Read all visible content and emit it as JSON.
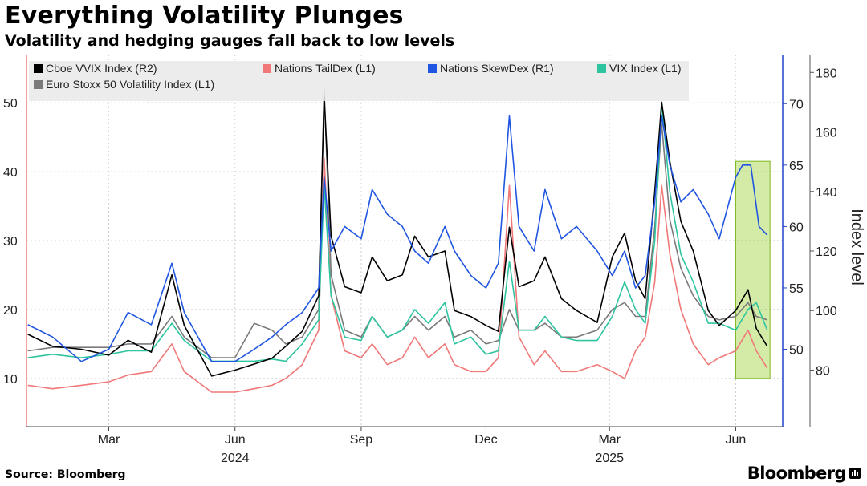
{
  "title": "Everything Volatility Plunges",
  "subtitle": "Volatility and hedging gauges fall back to low levels",
  "source": "Source: Bloomberg",
  "brand": "Bloomberg",
  "chart_data": {
    "type": "line",
    "ylabel": "Index level",
    "legend_placement": "top-left",
    "grid": true,
    "x_range": [
      "2024-01-01",
      "2025-06-30"
    ],
    "x_ticks": [
      {
        "date": "2024-03-01",
        "label": "Mar"
      },
      {
        "date": "2024-06-01",
        "label": "Jun"
      },
      {
        "date": "2024-09-01",
        "label": "Sep"
      },
      {
        "date": "2024-12-01",
        "label": "Dec"
      },
      {
        "date": "2025-03-01",
        "label": "Mar"
      },
      {
        "date": "2025-06-01",
        "label": "Jun"
      }
    ],
    "year_labels": [
      {
        "date": "2024-06-01",
        "label": "2024"
      },
      {
        "date": "2025-03-01",
        "label": "2025"
      }
    ],
    "axes": {
      "L1": {
        "range": [
          3,
          57
        ],
        "ticks": [
          10,
          20,
          30,
          40,
          50
        ],
        "color": "#e04040"
      },
      "R1": {
        "range": [
          43.7,
          74
        ],
        "ticks": [
          50,
          55,
          60,
          65,
          70
        ],
        "color": "#2244cc"
      },
      "R2": {
        "range": [
          61,
          186
        ],
        "ticks": [
          80,
          100,
          120,
          140,
          160,
          180
        ],
        "color": "#000000"
      }
    },
    "highlight": {
      "x": [
        "2025-06-01",
        "2025-06-26"
      ],
      "y_L1": [
        10,
        41.5
      ],
      "color": "#9ed23c"
    },
    "series": [
      {
        "name": "Cboe VVIX Index  (R2)",
        "axis": "R2",
        "color": "#000000",
        "points": [
          [
            "2024-01-02",
            92
          ],
          [
            "2024-01-20",
            88
          ],
          [
            "2024-02-10",
            87
          ],
          [
            "2024-03-01",
            85
          ],
          [
            "2024-03-15",
            90
          ],
          [
            "2024-04-01",
            86
          ],
          [
            "2024-04-16",
            112
          ],
          [
            "2024-04-25",
            95
          ],
          [
            "2024-05-15",
            78
          ],
          [
            "2024-06-01",
            80
          ],
          [
            "2024-06-15",
            82
          ],
          [
            "2024-06-28",
            84
          ],
          [
            "2024-07-08",
            88
          ],
          [
            "2024-07-20",
            93
          ],
          [
            "2024-08-01",
            105
          ],
          [
            "2024-08-05",
            172
          ],
          [
            "2024-08-10",
            125
          ],
          [
            "2024-08-20",
            108
          ],
          [
            "2024-09-01",
            106
          ],
          [
            "2024-09-09",
            118
          ],
          [
            "2024-09-20",
            110
          ],
          [
            "2024-10-01",
            112
          ],
          [
            "2024-10-10",
            125
          ],
          [
            "2024-10-20",
            118
          ],
          [
            "2024-11-01",
            120
          ],
          [
            "2024-11-08",
            100
          ],
          [
            "2024-11-20",
            98
          ],
          [
            "2024-12-01",
            95
          ],
          [
            "2024-12-10",
            93
          ],
          [
            "2024-12-18",
            128
          ],
          [
            "2024-12-25",
            108
          ],
          [
            "2025-01-05",
            110
          ],
          [
            "2025-01-13",
            118
          ],
          [
            "2025-01-25",
            104
          ],
          [
            "2025-02-05",
            100
          ],
          [
            "2025-02-20",
            96
          ],
          [
            "2025-03-03",
            118
          ],
          [
            "2025-03-12",
            126
          ],
          [
            "2025-03-20",
            110
          ],
          [
            "2025-03-27",
            104
          ],
          [
            "2025-04-03",
            140
          ],
          [
            "2025-04-08",
            170
          ],
          [
            "2025-04-14",
            150
          ],
          [
            "2025-04-22",
            130
          ],
          [
            "2025-05-01",
            120
          ],
          [
            "2025-05-12",
            100
          ],
          [
            "2025-05-20",
            95
          ],
          [
            "2025-06-01",
            100
          ],
          [
            "2025-06-10",
            107
          ],
          [
            "2025-06-16",
            94
          ],
          [
            "2025-06-24",
            88
          ]
        ]
      },
      {
        "name": "Nations TailDex  (L1)",
        "axis": "L1",
        "color": "#f07878",
        "points": [
          [
            "2024-01-02",
            9
          ],
          [
            "2024-01-20",
            8.5
          ],
          [
            "2024-02-10",
            9
          ],
          [
            "2024-03-01",
            9.5
          ],
          [
            "2024-03-15",
            10.5
          ],
          [
            "2024-04-01",
            11
          ],
          [
            "2024-04-16",
            15
          ],
          [
            "2024-04-25",
            11
          ],
          [
            "2024-05-15",
            8
          ],
          [
            "2024-06-01",
            8
          ],
          [
            "2024-06-15",
            8.5
          ],
          [
            "2024-06-28",
            9
          ],
          [
            "2024-07-08",
            10
          ],
          [
            "2024-07-20",
            12
          ],
          [
            "2024-08-01",
            17
          ],
          [
            "2024-08-05",
            42
          ],
          [
            "2024-08-10",
            22
          ],
          [
            "2024-08-20",
            14
          ],
          [
            "2024-09-01",
            13
          ],
          [
            "2024-09-09",
            15
          ],
          [
            "2024-09-20",
            12
          ],
          [
            "2024-10-01",
            13
          ],
          [
            "2024-10-10",
            16
          ],
          [
            "2024-10-20",
            13
          ],
          [
            "2024-11-01",
            15
          ],
          [
            "2024-11-08",
            12
          ],
          [
            "2024-11-20",
            11
          ],
          [
            "2024-12-01",
            11
          ],
          [
            "2024-12-10",
            13
          ],
          [
            "2024-12-18",
            38
          ],
          [
            "2024-12-25",
            16
          ],
          [
            "2025-01-05",
            12
          ],
          [
            "2025-01-13",
            14
          ],
          [
            "2025-01-25",
            11
          ],
          [
            "2025-02-05",
            11
          ],
          [
            "2025-02-20",
            12
          ],
          [
            "2025-03-03",
            11
          ],
          [
            "2025-03-12",
            10
          ],
          [
            "2025-03-20",
            14
          ],
          [
            "2025-03-27",
            16
          ],
          [
            "2025-04-03",
            24
          ],
          [
            "2025-04-08",
            38
          ],
          [
            "2025-04-14",
            28
          ],
          [
            "2025-04-22",
            20
          ],
          [
            "2025-05-01",
            15
          ],
          [
            "2025-05-12",
            12
          ],
          [
            "2025-05-20",
            13
          ],
          [
            "2025-06-01",
            14
          ],
          [
            "2025-06-10",
            17
          ],
          [
            "2025-06-16",
            14
          ],
          [
            "2025-06-24",
            11.5
          ]
        ]
      },
      {
        "name": "Nations SkewDex  (R1)",
        "axis": "R1",
        "color": "#1f55e0",
        "points": [
          [
            "2024-01-02",
            52
          ],
          [
            "2024-01-20",
            51
          ],
          [
            "2024-02-10",
            49
          ],
          [
            "2024-03-01",
            50
          ],
          [
            "2024-03-15",
            53
          ],
          [
            "2024-04-01",
            52
          ],
          [
            "2024-04-16",
            57
          ],
          [
            "2024-04-25",
            53
          ],
          [
            "2024-05-15",
            49
          ],
          [
            "2024-06-01",
            49
          ],
          [
            "2024-06-15",
            50
          ],
          [
            "2024-06-28",
            51
          ],
          [
            "2024-07-08",
            52
          ],
          [
            "2024-07-20",
            53
          ],
          [
            "2024-08-01",
            55
          ],
          [
            "2024-08-05",
            64
          ],
          [
            "2024-08-10",
            58
          ],
          [
            "2024-08-20",
            60
          ],
          [
            "2024-09-01",
            59
          ],
          [
            "2024-09-09",
            63
          ],
          [
            "2024-09-20",
            61
          ],
          [
            "2024-10-01",
            60
          ],
          [
            "2024-10-10",
            58
          ],
          [
            "2024-10-20",
            57
          ],
          [
            "2024-11-01",
            60
          ],
          [
            "2024-11-08",
            58
          ],
          [
            "2024-11-20",
            56
          ],
          [
            "2024-12-01",
            55
          ],
          [
            "2024-12-10",
            57
          ],
          [
            "2024-12-18",
            69
          ],
          [
            "2024-12-25",
            60
          ],
          [
            "2025-01-05",
            58
          ],
          [
            "2025-01-13",
            63
          ],
          [
            "2025-01-25",
            59
          ],
          [
            "2025-02-05",
            60
          ],
          [
            "2025-02-20",
            58
          ],
          [
            "2025-03-03",
            56
          ],
          [
            "2025-03-12",
            58
          ],
          [
            "2025-03-20",
            55
          ],
          [
            "2025-03-27",
            56
          ],
          [
            "2025-04-03",
            62
          ],
          [
            "2025-04-08",
            69
          ],
          [
            "2025-04-14",
            65
          ],
          [
            "2025-04-22",
            62
          ],
          [
            "2025-05-01",
            63
          ],
          [
            "2025-05-12",
            61
          ],
          [
            "2025-05-20",
            59
          ],
          [
            "2025-06-01",
            64
          ],
          [
            "2025-06-06",
            65
          ],
          [
            "2025-06-12",
            65
          ],
          [
            "2025-06-18",
            60
          ],
          [
            "2025-06-24",
            59.3
          ]
        ]
      },
      {
        "name": "VIX Index (L1)",
        "axis": "L1",
        "color": "#2ec4a0",
        "points": [
          [
            "2024-01-02",
            13
          ],
          [
            "2024-01-20",
            13.5
          ],
          [
            "2024-02-10",
            13
          ],
          [
            "2024-03-01",
            13.5
          ],
          [
            "2024-03-15",
            14
          ],
          [
            "2024-04-01",
            14
          ],
          [
            "2024-04-16",
            18
          ],
          [
            "2024-04-25",
            15.5
          ],
          [
            "2024-05-15",
            12.5
          ],
          [
            "2024-06-01",
            12.5
          ],
          [
            "2024-06-15",
            12.5
          ],
          [
            "2024-06-28",
            12.8
          ],
          [
            "2024-07-08",
            12.5
          ],
          [
            "2024-07-20",
            15
          ],
          [
            "2024-08-01",
            18.5
          ],
          [
            "2024-08-05",
            38
          ],
          [
            "2024-08-10",
            22
          ],
          [
            "2024-08-20",
            16
          ],
          [
            "2024-09-01",
            15.5
          ],
          [
            "2024-09-09",
            19
          ],
          [
            "2024-09-20",
            16
          ],
          [
            "2024-10-01",
            17
          ],
          [
            "2024-10-10",
            20
          ],
          [
            "2024-10-20",
            18
          ],
          [
            "2024-11-01",
            21
          ],
          [
            "2024-11-08",
            15
          ],
          [
            "2024-11-20",
            16
          ],
          [
            "2024-12-01",
            13.5
          ],
          [
            "2024-12-10",
            14
          ],
          [
            "2024-12-18",
            27
          ],
          [
            "2024-12-25",
            17
          ],
          [
            "2025-01-05",
            17
          ],
          [
            "2025-01-13",
            19
          ],
          [
            "2025-01-25",
            16
          ],
          [
            "2025-02-05",
            15.5
          ],
          [
            "2025-02-20",
            15.5
          ],
          [
            "2025-03-03",
            19
          ],
          [
            "2025-03-12",
            24
          ],
          [
            "2025-03-20",
            20
          ],
          [
            "2025-03-27",
            18
          ],
          [
            "2025-04-03",
            30
          ],
          [
            "2025-04-08",
            50
          ],
          [
            "2025-04-14",
            37
          ],
          [
            "2025-04-22",
            28
          ],
          [
            "2025-05-01",
            24
          ],
          [
            "2025-05-12",
            18
          ],
          [
            "2025-05-20",
            18
          ],
          [
            "2025-06-01",
            17
          ],
          [
            "2025-06-10",
            20
          ],
          [
            "2025-06-16",
            21
          ],
          [
            "2025-06-24",
            17
          ]
        ]
      },
      {
        "name": "Euro Stoxx 50 Volatility Index (L1)",
        "axis": "L1",
        "color": "#7a7a7a",
        "points": [
          [
            "2024-01-02",
            14
          ],
          [
            "2024-01-20",
            14.5
          ],
          [
            "2024-02-10",
            14.5
          ],
          [
            "2024-03-01",
            14.5
          ],
          [
            "2024-03-15",
            15
          ],
          [
            "2024-04-01",
            15
          ],
          [
            "2024-04-16",
            19
          ],
          [
            "2024-04-25",
            16
          ],
          [
            "2024-05-15",
            13
          ],
          [
            "2024-06-01",
            13
          ],
          [
            "2024-06-15",
            18
          ],
          [
            "2024-06-28",
            17
          ],
          [
            "2024-07-08",
            15
          ],
          [
            "2024-07-20",
            16
          ],
          [
            "2024-08-01",
            20
          ],
          [
            "2024-08-05",
            52
          ],
          [
            "2024-08-10",
            25
          ],
          [
            "2024-08-20",
            17
          ],
          [
            "2024-09-01",
            16
          ],
          [
            "2024-09-09",
            19
          ],
          [
            "2024-09-20",
            16
          ],
          [
            "2024-10-01",
            17
          ],
          [
            "2024-10-10",
            19
          ],
          [
            "2024-10-20",
            17
          ],
          [
            "2024-11-01",
            19
          ],
          [
            "2024-11-08",
            16
          ],
          [
            "2024-11-20",
            17
          ],
          [
            "2024-12-01",
            15
          ],
          [
            "2024-12-10",
            15.5
          ],
          [
            "2024-12-18",
            20
          ],
          [
            "2024-12-25",
            17
          ],
          [
            "2025-01-05",
            17
          ],
          [
            "2025-01-13",
            18
          ],
          [
            "2025-01-25",
            16
          ],
          [
            "2025-02-05",
            16
          ],
          [
            "2025-02-20",
            17
          ],
          [
            "2025-03-03",
            20
          ],
          [
            "2025-03-12",
            21
          ],
          [
            "2025-03-20",
            19
          ],
          [
            "2025-03-27",
            19
          ],
          [
            "2025-04-03",
            32
          ],
          [
            "2025-04-08",
            47
          ],
          [
            "2025-04-14",
            33
          ],
          [
            "2025-04-22",
            26
          ],
          [
            "2025-05-01",
            22
          ],
          [
            "2025-05-12",
            19
          ],
          [
            "2025-05-20",
            18.5
          ],
          [
            "2025-06-01",
            19
          ],
          [
            "2025-06-10",
            21
          ],
          [
            "2025-06-16",
            19
          ],
          [
            "2025-06-24",
            18.5
          ]
        ]
      }
    ]
  }
}
